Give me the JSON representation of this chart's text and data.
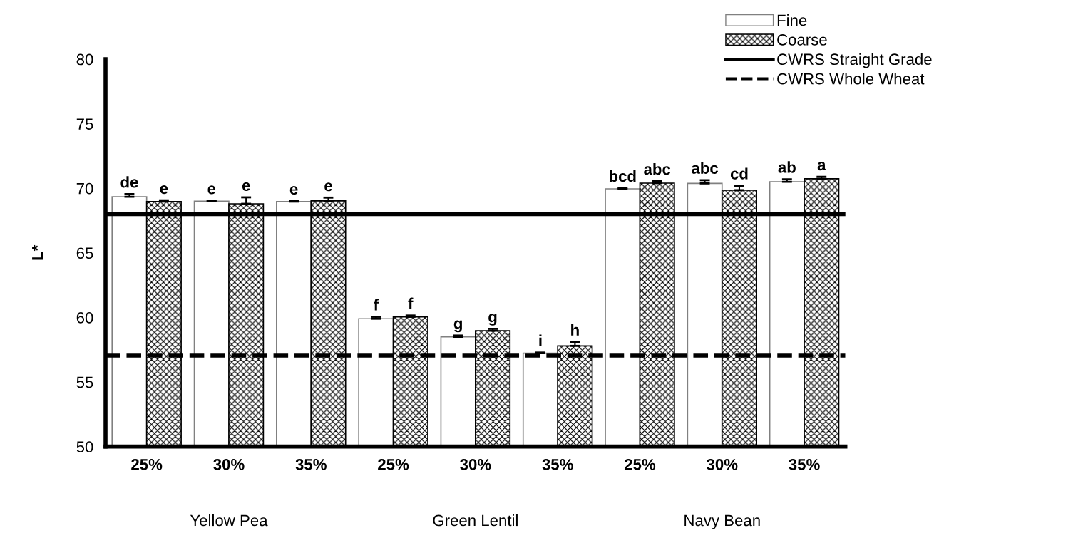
{
  "chart_data": {
    "type": "bar",
    "ylabel": "L*",
    "categories": [
      "25%",
      "30%",
      "35%",
      "25%",
      "30%",
      "35%",
      "25%",
      "30%",
      "35%"
    ],
    "series": [
      {
        "name": "Fine",
        "color": "#808080",
        "values": [
          69.35,
          69.0,
          68.97,
          59.9,
          58.5,
          57.23,
          69.96,
          70.38,
          70.5
        ],
        "errors": [
          0.2,
          0.05,
          0.05,
          0.15,
          0.1,
          0.05,
          0.05,
          0.25,
          0.2
        ],
        "value_labels": [
          "de",
          "e",
          "e",
          "f",
          "g",
          "i",
          "bcd",
          "abc",
          "ab"
        ]
      },
      {
        "name": "Coarse",
        "color": "#000000",
        "values": [
          68.97,
          68.8,
          69.03,
          60.05,
          58.97,
          57.8,
          70.4,
          69.85,
          70.74
        ],
        "errors": [
          0.1,
          0.5,
          0.25,
          0.1,
          0.15,
          0.3,
          0.15,
          0.35,
          0.15
        ],
        "value_labels": [
          "e",
          "e",
          "e",
          "f",
          "g",
          "h",
          "abc",
          "cd",
          "a"
        ]
      }
    ],
    "ref_lines": [
      {
        "axis": "y",
        "value": 68,
        "label": "CWRS Straight Grade",
        "color": "#000000",
        "line_style": "solid"
      },
      {
        "axis": "y",
        "value": 57.05,
        "label": "CWRS Whole Wheat",
        "color": "#000000",
        "line_style": "dashed"
      }
    ],
    "annotations": [
      "Yellow Pea",
      "Green Lentil",
      "Navy Bean"
    ],
    "ylim": [
      50,
      80
    ],
    "yticks": [
      50,
      55,
      60,
      65,
      70,
      75,
      80
    ],
    "grid": false,
    "legend": "top right"
  }
}
